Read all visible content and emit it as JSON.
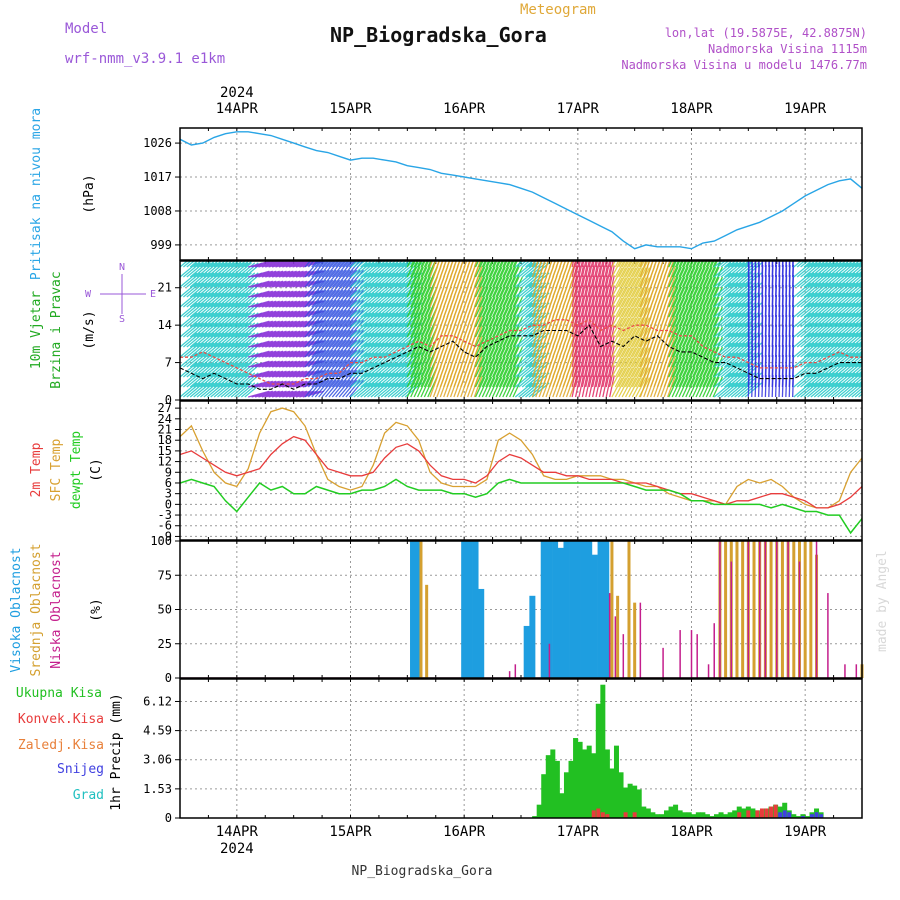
{
  "header": {
    "model_label": "Model",
    "model_name": "wrf-nmm_v3.9.1 e1km",
    "subtitle": "Meteogram",
    "title": "NP_Biogradska_Gora",
    "lonlat": "lon,lat (19.5875E, 42.8875N)",
    "elevation": "Nadmorska Visina 1115m",
    "model_elevation": "Nadmorska Visina u modelu 1476.77m",
    "watermark": "made by Angel",
    "footer": "NP_Biogradska_Gora"
  },
  "colors": {
    "pressure": "#29a5e6",
    "wind_speed": "#000000",
    "gust": "#e8504a",
    "t2m": "#e83c3c",
    "sfc": "#d8a030",
    "dewpt": "#22cc22",
    "high_cloud": "#1e9ee0",
    "mid_cloud": "#d4a030",
    "low_cloud": "#c41e8c",
    "total_precip": "#22c022",
    "conv_precip": "#e83c3c",
    "frz_precip": "#e8803a",
    "snow": "#4040e0",
    "hail": "#20c0c0",
    "purple_label": "#9a58d8"
  },
  "time_axis": {
    "year": "2024",
    "days": [
      "14APR",
      "15APR",
      "16APR",
      "17APR",
      "18APR",
      "19APR"
    ],
    "start_day_offset": -0.5,
    "end_day_offset": 5.5
  },
  "chart_data": [
    {
      "type": "line",
      "name": "pressure",
      "ylabel": [
        "Pritisak na nivou mora",
        "(hPa)"
      ],
      "yticks": [
        999,
        1008,
        1017,
        1026
      ],
      "ylim": [
        995,
        1030
      ],
      "x_days": [
        -0.5,
        -0.4,
        -0.3,
        -0.2,
        -0.1,
        0,
        0.1,
        0.2,
        0.3,
        0.4,
        0.5,
        0.6,
        0.7,
        0.8,
        0.9,
        1.0,
        1.1,
        1.2,
        1.3,
        1.4,
        1.5,
        1.6,
        1.7,
        1.8,
        1.9,
        2.0,
        2.1,
        2.2,
        2.3,
        2.4,
        2.5,
        2.6,
        2.7,
        2.8,
        2.9,
        3.0,
        3.1,
        3.2,
        3.3,
        3.4,
        3.5,
        3.6,
        3.7,
        3.8,
        3.9,
        4.0,
        4.1,
        4.2,
        4.3,
        4.4,
        4.5,
        4.6,
        4.7,
        4.8,
        4.9,
        5.0,
        5.1,
        5.2,
        5.3,
        5.4,
        5.5
      ],
      "values": [
        1027,
        1025.5,
        1026,
        1027.5,
        1028.5,
        1029,
        1029,
        1028.5,
        1028,
        1027,
        1026,
        1025,
        1024,
        1023.5,
        1022.5,
        1021.5,
        1022,
        1022,
        1021.5,
        1021,
        1020,
        1019.5,
        1019,
        1018,
        1017.5,
        1017,
        1016.5,
        1016,
        1015.5,
        1015,
        1014,
        1013,
        1011.5,
        1010,
        1008.5,
        1007,
        1005.5,
        1004,
        1002.5,
        1000,
        998,
        999,
        998.5,
        998.5,
        998.5,
        998,
        999.5,
        1000,
        1001.5,
        1003,
        1004,
        1005,
        1006.5,
        1008,
        1010,
        1012,
        1013.5,
        1015,
        1016,
        1016.5,
        1014
      ]
    },
    {
      "type": "line",
      "name": "wind",
      "ylabel": [
        "10m Vjetar",
        "Brzina i Pravac",
        "(m/s)"
      ],
      "compass": [
        "N",
        "S",
        "W",
        "E"
      ],
      "yticks": [
        0,
        7,
        14,
        21
      ],
      "ylim": [
        0,
        26
      ],
      "x_days": [
        -0.5,
        -0.4,
        -0.3,
        -0.2,
        -0.1,
        0,
        0.1,
        0.2,
        0.3,
        0.4,
        0.5,
        0.6,
        0.7,
        0.8,
        0.9,
        1.0,
        1.1,
        1.2,
        1.3,
        1.4,
        1.5,
        1.6,
        1.7,
        1.8,
        1.9,
        2.0,
        2.1,
        2.2,
        2.3,
        2.4,
        2.5,
        2.6,
        2.7,
        2.8,
        2.9,
        3.0,
        3.1,
        3.2,
        3.3,
        3.4,
        3.5,
        3.6,
        3.7,
        3.8,
        3.9,
        4.0,
        4.1,
        4.2,
        4.3,
        4.4,
        4.5,
        4.6,
        4.7,
        4.8,
        4.9,
        5.0,
        5.1,
        5.2,
        5.3,
        5.4,
        5.5
      ],
      "series": [
        {
          "values": [
            6,
            5,
            4,
            5,
            4,
            3,
            3,
            2,
            2,
            3,
            2,
            3,
            3,
            4,
            4,
            5,
            5,
            6,
            7,
            8,
            9,
            10,
            9,
            10,
            11,
            9,
            8,
            10,
            11,
            12,
            12,
            12,
            13,
            13,
            13,
            12,
            14,
            10,
            11,
            10,
            12,
            11,
            12,
            10,
            9,
            9,
            8,
            7,
            7,
            6,
            5,
            4,
            4,
            4,
            4,
            5,
            5,
            6,
            7,
            7,
            7
          ]
        },
        {
          "values": [
            8,
            8,
            9,
            8,
            7,
            6,
            5,
            4,
            3,
            3,
            3,
            4,
            4,
            5,
            5,
            7,
            7,
            8,
            8,
            9,
            10,
            11,
            10,
            12,
            12,
            11,
            10,
            11,
            12,
            13,
            13,
            14,
            14,
            15,
            15,
            14,
            15,
            13,
            14,
            13,
            14,
            14,
            13,
            13,
            12,
            12,
            10,
            9,
            8,
            8,
            7,
            6,
            6,
            6,
            6,
            7,
            7,
            8,
            9,
            8,
            8
          ]
        }
      ]
    },
    {
      "type": "line",
      "name": "temperature",
      "ylabel": [
        "2m Temp",
        "SFC Temp",
        "dewpt Temp",
        "(C)"
      ],
      "yticks": [
        -9,
        -6,
        -3,
        0,
        3,
        6,
        9,
        12,
        15,
        18,
        21,
        24,
        27
      ],
      "ylim": [
        -10,
        29
      ],
      "x_days": [
        -0.5,
        -0.4,
        -0.3,
        -0.2,
        -0.1,
        0,
        0.1,
        0.2,
        0.3,
        0.4,
        0.5,
        0.6,
        0.7,
        0.8,
        0.9,
        1.0,
        1.1,
        1.2,
        1.3,
        1.4,
        1.5,
        1.6,
        1.7,
        1.8,
        1.9,
        2.0,
        2.1,
        2.2,
        2.3,
        2.4,
        2.5,
        2.6,
        2.7,
        2.8,
        2.9,
        3.0,
        3.1,
        3.2,
        3.3,
        3.4,
        3.5,
        3.6,
        3.7,
        3.8,
        3.9,
        4.0,
        4.1,
        4.2,
        4.3,
        4.4,
        4.5,
        4.6,
        4.7,
        4.8,
        4.9,
        5.0,
        5.1,
        5.2,
        5.3,
        5.4,
        5.5
      ],
      "series": [
        {
          "values": [
            14,
            15,
            13,
            11,
            9,
            8,
            9,
            10,
            14,
            17,
            19,
            18,
            14,
            10,
            9,
            8,
            8,
            9,
            13,
            16,
            17,
            15,
            11,
            8,
            7,
            7,
            6,
            8,
            12,
            14,
            13,
            11,
            9,
            9,
            8,
            8,
            7,
            7,
            7,
            6,
            6,
            6,
            5,
            4,
            3,
            3,
            2,
            1,
            0,
            1,
            1,
            2,
            3,
            3,
            2,
            1,
            -1,
            -1,
            0,
            2,
            5
          ]
        },
        {
          "values": [
            19,
            22,
            15,
            9,
            6,
            5,
            10,
            20,
            26,
            27,
            26,
            22,
            14,
            7,
            5,
            4,
            5,
            11,
            20,
            23,
            22,
            18,
            9,
            6,
            5,
            5,
            5,
            7,
            18,
            20,
            18,
            14,
            8,
            7,
            7,
            8,
            8,
            8,
            7,
            7,
            6,
            5,
            5,
            3,
            2,
            1,
            1,
            1,
            0,
            5,
            7,
            6,
            7,
            5,
            2,
            0,
            -1,
            -1,
            1,
            9,
            13
          ]
        },
        {
          "values": [
            6,
            7,
            6,
            5,
            1,
            -2,
            2,
            6,
            4,
            5,
            3,
            3,
            5,
            4,
            3,
            3,
            4,
            4,
            5,
            7,
            5,
            4,
            4,
            4,
            3,
            3,
            2,
            3,
            6,
            7,
            6,
            6,
            6,
            6,
            6,
            6,
            6,
            6,
            6,
            6,
            5,
            4,
            4,
            4,
            3,
            1,
            1,
            0,
            0,
            0,
            0,
            0,
            -1,
            0,
            -1,
            -2,
            -2,
            -3,
            -3,
            -8,
            -4
          ]
        }
      ]
    },
    {
      "type": "bar",
      "name": "cloud_cover",
      "ylabel": [
        "Visoka Oblacnost",
        "Srednja Oblacnost",
        "Niska Oblacnost",
        "(%)"
      ],
      "yticks": [
        0,
        25,
        50,
        75,
        100
      ],
      "ylim": [
        0,
        100
      ],
      "series": [
        {
          "name": "high",
          "x_days": [
            1.55,
            1.6,
            2.0,
            2.05,
            2.1,
            2.15,
            2.55,
            2.6,
            2.7,
            2.75,
            2.8,
            2.85,
            2.9,
            2.95,
            3.0,
            3.05,
            3.1,
            3.15,
            3.2,
            3.25
          ],
          "values": [
            100,
            100,
            100,
            100,
            100,
            65,
            38,
            60,
            100,
            100,
            100,
            95,
            100,
            100,
            100,
            100,
            100,
            90,
            100,
            100
          ]
        },
        {
          "name": "mid",
          "x_days": [
            1.62,
            1.67,
            3.3,
            3.35,
            3.45,
            3.5,
            4.25,
            4.3,
            4.35,
            4.4,
            4.45,
            4.5,
            4.55,
            4.6,
            4.65,
            4.7,
            4.75,
            4.8,
            4.85,
            4.9,
            4.95,
            5.0,
            5.05,
            5.1,
            5.5
          ],
          "values": [
            100,
            68,
            100,
            60,
            100,
            55,
            100,
            100,
            100,
            100,
            100,
            100,
            100,
            100,
            100,
            100,
            100,
            100,
            100,
            100,
            100,
            100,
            100,
            90,
            10
          ]
        },
        {
          "name": "low",
          "x_days": [
            2.4,
            2.45,
            2.75,
            3.28,
            3.33,
            3.4,
            3.55,
            3.75,
            3.9,
            4.0,
            4.05,
            4.15,
            4.2,
            4.25,
            4.35,
            4.5,
            4.6,
            4.65,
            4.75,
            4.85,
            4.95,
            5.1,
            5.2,
            5.35,
            5.45
          ],
          "values": [
            5,
            10,
            25,
            62,
            45,
            32,
            55,
            22,
            35,
            35,
            32,
            10,
            40,
            100,
            85,
            100,
            100,
            100,
            100,
            100,
            85,
            100,
            62,
            10,
            10
          ]
        }
      ]
    },
    {
      "type": "bar",
      "name": "precipitation",
      "ylabel": [
        "Ukupna Kisa",
        "Konvek.Kisa",
        "Zaledj.Kisa",
        "Snijeg",
        "Grad",
        "1hr Precip (mm)"
      ],
      "yticks": [
        0,
        1.53,
        3.06,
        4.59,
        6.12
      ],
      "ylim": [
        0,
        7.3
      ],
      "series": [
        {
          "name": "total",
          "x_days": [
            2.62,
            2.66,
            2.7,
            2.74,
            2.78,
            2.82,
            2.86,
            2.9,
            2.94,
            2.98,
            3.02,
            3.06,
            3.1,
            3.14,
            3.18,
            3.22,
            3.26,
            3.3,
            3.34,
            3.38,
            3.42,
            3.46,
            3.5,
            3.54,
            3.58,
            3.62,
            3.66,
            3.7,
            3.74,
            3.78,
            3.82,
            3.86,
            3.9,
            3.94,
            3.98,
            4.02,
            4.06,
            4.1,
            4.14,
            4.18,
            4.22,
            4.26,
            4.3,
            4.34,
            4.38,
            4.42,
            4.46,
            4.5,
            4.54,
            4.58,
            4.62,
            4.66,
            4.7,
            4.74,
            4.78,
            4.82,
            4.86,
            4.9,
            4.94,
            4.98,
            5.02,
            5.06,
            5.1,
            5.14
          ],
          "values": [
            0.1,
            0.7,
            2.3,
            3.3,
            3.6,
            3.0,
            1.3,
            2.4,
            3.0,
            4.2,
            4.0,
            3.6,
            3.8,
            3.4,
            6.0,
            7.0,
            3.6,
            2.6,
            3.8,
            2.4,
            1.6,
            1.8,
            1.7,
            1.5,
            0.6,
            0.5,
            0.3,
            0.2,
            0.2,
            0.4,
            0.6,
            0.7,
            0.4,
            0.3,
            0.3,
            0.2,
            0.3,
            0.3,
            0.2,
            0.1,
            0.2,
            0.3,
            0.2,
            0.3,
            0.4,
            0.6,
            0.5,
            0.6,
            0.5,
            0.4,
            0.2,
            0.5,
            0.6,
            0.7,
            0.6,
            0.8,
            0.4,
            0.2,
            0.1,
            0.2,
            0.1,
            0.3,
            0.5,
            0.3
          ]
        },
        {
          "name": "convective",
          "x_days": [
            3.14,
            3.18,
            3.22,
            3.26,
            3.42,
            3.5,
            4.42,
            4.5,
            4.58,
            4.62,
            4.66,
            4.7,
            4.74
          ],
          "values": [
            0.4,
            0.5,
            0.3,
            0.2,
            0.3,
            0.3,
            0.3,
            0.4,
            0.4,
            0.5,
            0.5,
            0.6,
            0.7
          ]
        },
        {
          "name": "snow",
          "x_days": [
            4.78,
            4.82,
            4.86,
            4.98,
            5.06,
            5.1,
            5.14
          ],
          "values": [
            0.3,
            0.4,
            0.3,
            0.1,
            0.2,
            0.3,
            0.2
          ]
        }
      ]
    }
  ]
}
